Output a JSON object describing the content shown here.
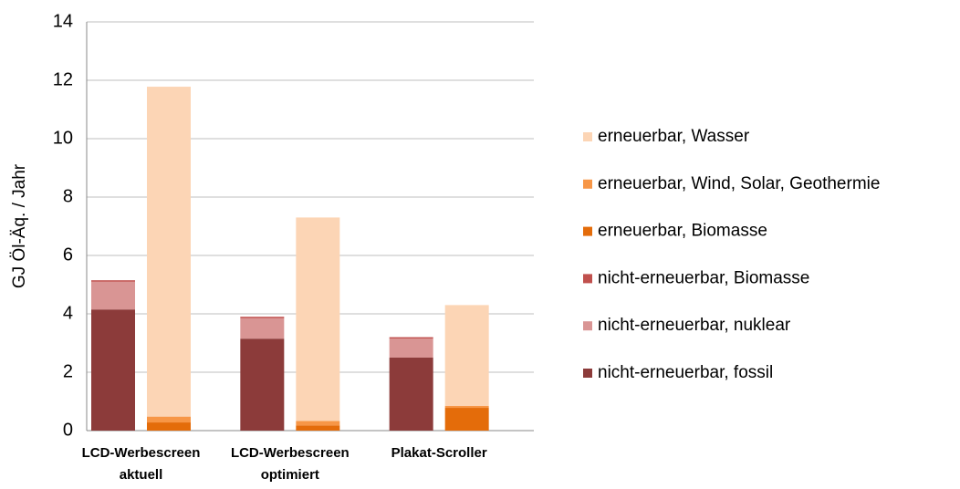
{
  "chart_data": {
    "type": "stacked-bar",
    "y_label": "GJ Öl-Äq. / Jahr",
    "categories": [
      [
        "LCD-Werbescreen",
        "aktuell"
      ],
      [
        "LCD-Werbescreen",
        "optimiert"
      ],
      [
        "Plakat-Scroller"
      ]
    ],
    "ylim": [
      0,
      14
    ],
    "yticks": [
      0,
      2,
      4,
      6,
      8,
      10,
      12,
      14
    ],
    "grid": true,
    "legend": "right",
    "series": [
      {
        "name": "nicht-erneuerbar, fossil",
        "color": "#8c3b3a",
        "stack": 0,
        "values": [
          4.15,
          3.15,
          2.5
        ]
      },
      {
        "name": "nicht-erneuerbar, nuklear",
        "color": "#d99594",
        "stack": 0,
        "values": [
          0.95,
          0.7,
          0.65
        ]
      },
      {
        "name": "nicht-erneuerbar, Biomasse",
        "color": "#c0504d",
        "stack": 0,
        "values": [
          0.05,
          0.05,
          0.05
        ]
      },
      {
        "name": "erneuerbar, Biomasse",
        "color": "#e46c0a",
        "stack": 1,
        "values": [
          0.28,
          0.18,
          0.78
        ]
      },
      {
        "name": "erneuerbar, Wind, Solar, Geothermie",
        "color": "#f79646",
        "stack": 1,
        "values": [
          0.2,
          0.15,
          0.07
        ]
      },
      {
        "name": "erneuerbar, Wasser",
        "color": "#fcd5b5",
        "stack": 1,
        "values": [
          11.3,
          6.97,
          3.45
        ]
      }
    ]
  }
}
